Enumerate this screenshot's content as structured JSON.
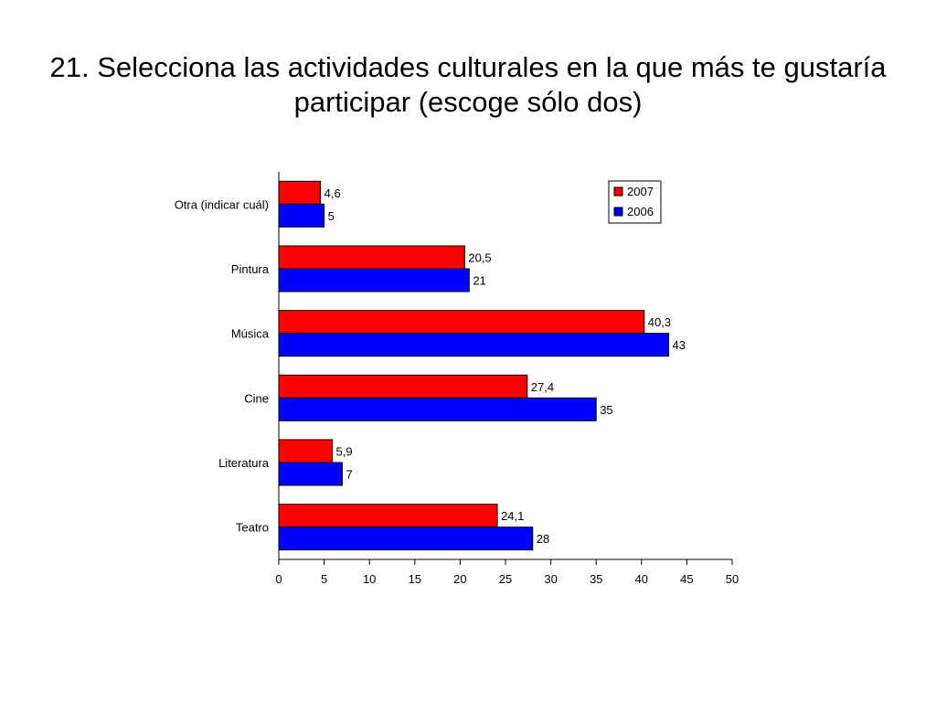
{
  "slide": {
    "title": "21. Selecciona las actividades culturales en la que más te gustaría participar (escoge sólo dos)"
  },
  "chart_data": {
    "type": "bar",
    "orientation": "horizontal",
    "title": "",
    "xlabel": "",
    "ylabel": "",
    "categories": [
      "Otra (indicar cuál)",
      "Pintura",
      "Música",
      "Cine",
      "Literatura",
      "Teatro"
    ],
    "series": [
      {
        "name": "2007",
        "color": "#ff0000",
        "values": [
          4.6,
          20.5,
          40.3,
          27.4,
          5.9,
          24.1
        ],
        "labels": [
          "4,6",
          "20,5",
          "40,3",
          "27,4",
          "5,9",
          "24,1"
        ]
      },
      {
        "name": "2006",
        "color": "#0000ff",
        "values": [
          5,
          21,
          43,
          35,
          7,
          28
        ],
        "labels": [
          "5",
          "21",
          "43",
          "35",
          "7",
          "28"
        ]
      }
    ],
    "xlim": [
      0,
      50
    ],
    "xticks": [
      0,
      5,
      10,
      15,
      20,
      25,
      30,
      35,
      40,
      45,
      50
    ],
    "grid": false,
    "legend": "top-right"
  }
}
